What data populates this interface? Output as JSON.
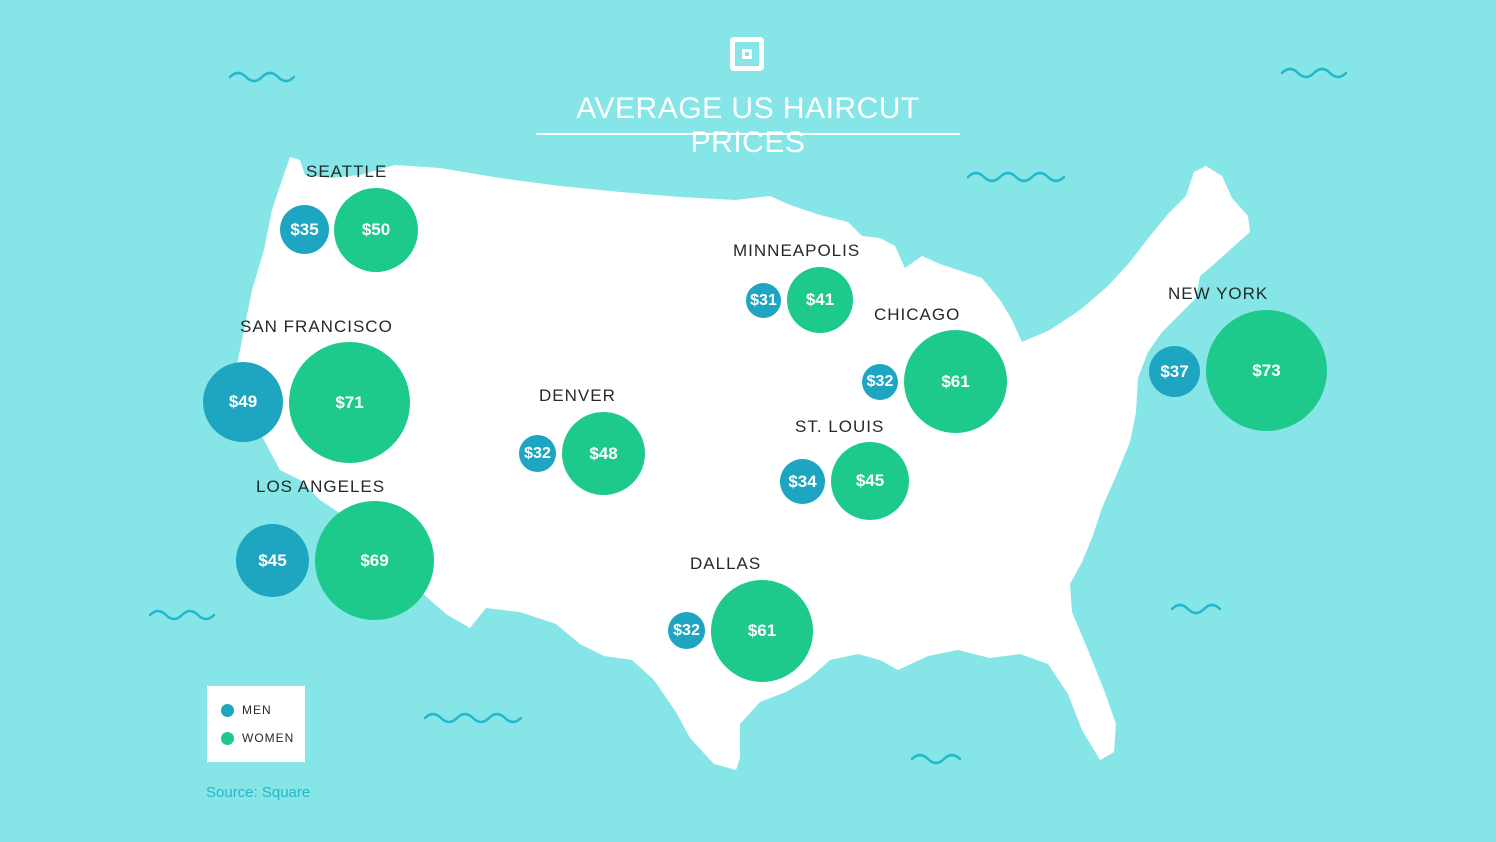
{
  "title": "AVERAGE US HAIRCUT PRICES",
  "logo": "square-logo-icon",
  "colors": {
    "background": "#86e6e7",
    "land": "#ffffff",
    "men": "#1ea5c2",
    "women": "#1ec98c",
    "wave": "#23b8cc"
  },
  "legend": {
    "men_label": "MEN",
    "women_label": "WOMEN"
  },
  "source": "Source: Square",
  "cities": {
    "seattle": {
      "name": "SEATTLE",
      "men": "$35",
      "women": "$50"
    },
    "san_francisco": {
      "name": "SAN FRANCISCO",
      "men": "$49",
      "women": "$71"
    },
    "los_angeles": {
      "name": "LOS ANGELES",
      "men": "$45",
      "women": "$69"
    },
    "denver": {
      "name": "DENVER",
      "men": "$32",
      "women": "$48"
    },
    "minneapolis": {
      "name": "MINNEAPOLIS",
      "men": "$31",
      "women": "$41"
    },
    "chicago": {
      "name": "CHICAGO",
      "men": "$32",
      "women": "$61"
    },
    "st_louis": {
      "name": "ST. LOUIS",
      "men": "$34",
      "women": "$45"
    },
    "dallas": {
      "name": "DALLAS",
      "men": "$32",
      "women": "$61"
    },
    "new_york": {
      "name": "NEW YORK",
      "men": "$37",
      "women": "$73"
    }
  }
}
